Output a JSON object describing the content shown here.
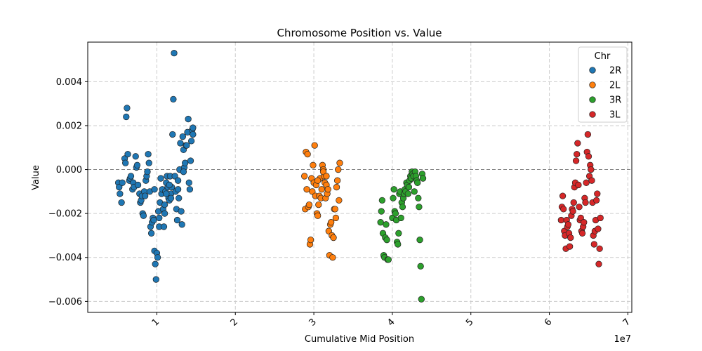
{
  "chart_data": {
    "type": "scatter",
    "title": "Chromosome Position vs. Value",
    "xlabel": "Cumulative Mid Position",
    "ylabel": "Value",
    "x_offset_label": "1e7",
    "xlim": [
      0.12,
      7.05
    ],
    "ylim": [
      -0.0065,
      0.0058
    ],
    "xticks": [
      1,
      2,
      3,
      4,
      5,
      6,
      7
    ],
    "xtick_labels": [
      "1",
      "2",
      "3",
      "4",
      "5",
      "6",
      "7"
    ],
    "yticks": [
      -0.006,
      -0.004,
      -0.002,
      0.0,
      0.002,
      0.004
    ],
    "ytick_labels": [
      "−0.006",
      "−0.004",
      "−0.002",
      "0.000",
      "0.002",
      "0.004"
    ],
    "grid": true,
    "reference_line_y": 0.0,
    "legend": {
      "title": "Chr",
      "position": "top-right",
      "entries": [
        "2R",
        "2L",
        "3R",
        "3L"
      ]
    },
    "series": [
      {
        "name": "2R",
        "color": "#1f77b4",
        "points": [
          [
            0.51,
            -0.0006
          ],
          [
            0.52,
            -0.0008
          ],
          [
            0.53,
            -0.0011
          ],
          [
            0.55,
            -0.0015
          ],
          [
            0.56,
            -0.0006
          ],
          [
            0.59,
            0.0005
          ],
          [
            0.6,
            0.0003
          ],
          [
            0.61,
            0.0024
          ],
          [
            0.62,
            0.0028
          ],
          [
            0.63,
            0.0007
          ],
          [
            0.65,
            -0.0005
          ],
          [
            0.66,
            -0.0004
          ],
          [
            0.67,
            -0.0003
          ],
          [
            0.69,
            -0.0009
          ],
          [
            0.7,
            -0.0006
          ],
          [
            0.71,
            -0.0008
          ],
          [
            0.73,
            0.0006
          ],
          [
            0.74,
            0.0001
          ],
          [
            0.75,
            0.0002
          ],
          [
            0.76,
            -0.0007
          ],
          [
            0.78,
            -0.0011
          ],
          [
            0.79,
            -0.0015
          ],
          [
            0.8,
            -0.0014
          ],
          [
            0.81,
            -0.0012
          ],
          [
            0.82,
            -0.002
          ],
          [
            0.83,
            -0.0021
          ],
          [
            0.84,
            -0.001
          ],
          [
            0.85,
            -0.0012
          ],
          [
            0.86,
            -0.0005
          ],
          [
            0.87,
            -0.0003
          ],
          [
            0.88,
            -0.0001
          ],
          [
            0.89,
            0.0007
          ],
          [
            0.9,
            0.0003
          ],
          [
            0.91,
            -0.001
          ],
          [
            0.92,
            -0.0026
          ],
          [
            0.93,
            -0.0029
          ],
          [
            0.94,
            -0.0024
          ],
          [
            0.95,
            -0.0022
          ],
          [
            0.96,
            -0.0023
          ],
          [
            0.97,
            -0.0037
          ],
          [
            0.98,
            -0.0043
          ],
          [
            0.99,
            -0.005
          ],
          [
            1.0,
            -0.0038
          ],
          [
            1.01,
            -0.004
          ],
          [
            1.02,
            -0.0019
          ],
          [
            1.03,
            -0.0026
          ],
          [
            1.04,
            -0.0015
          ],
          [
            1.05,
            -0.0004
          ],
          [
            1.06,
            -0.0011
          ],
          [
            1.07,
            -0.0009
          ],
          [
            1.08,
            -0.0018
          ],
          [
            1.09,
            -0.0026
          ],
          [
            1.1,
            -0.0016
          ],
          [
            1.11,
            -0.001
          ],
          [
            1.12,
            -0.0006
          ],
          [
            1.13,
            -0.0003
          ],
          [
            1.14,
            -0.0008
          ],
          [
            1.15,
            -0.0013
          ],
          [
            1.16,
            -0.0014
          ],
          [
            1.17,
            -0.0003
          ],
          [
            1.18,
            -0.0011
          ],
          [
            1.19,
            -0.0008
          ],
          [
            1.2,
            0.0016
          ],
          [
            1.21,
            0.0032
          ],
          [
            1.22,
            0.0053
          ],
          [
            1.23,
            -0.0003
          ],
          [
            1.24,
            -0.001
          ],
          [
            1.25,
            -0.0018
          ],
          [
            1.26,
            -0.0023
          ],
          [
            1.27,
            -0.0009
          ],
          [
            1.28,
            -0.0013
          ],
          [
            1.29,
            0.0
          ],
          [
            1.3,
            0.0012
          ],
          [
            1.31,
            -0.0019
          ],
          [
            1.32,
            -0.0025
          ],
          [
            1.33,
            0.0015
          ],
          [
            1.34,
            0.0009
          ],
          [
            1.35,
            0.0001
          ],
          [
            1.36,
            0.0003
          ],
          [
            1.37,
            0.0011
          ],
          [
            1.38,
            0.0011
          ],
          [
            1.39,
            0.0017
          ],
          [
            1.4,
            0.0023
          ],
          [
            1.41,
            -0.0006
          ],
          [
            1.42,
            -0.0009
          ],
          [
            1.43,
            0.0004
          ],
          [
            1.44,
            0.0013
          ],
          [
            1.45,
            0.0018
          ],
          [
            1.46,
            0.0016
          ],
          [
            1.46,
            0.0019
          ],
          [
            1.18,
            -0.0013
          ],
          [
            1.1,
            -0.002
          ],
          [
            1.03,
            -0.0022
          ],
          [
            0.97,
            -0.0009
          ],
          [
            1.12,
            -0.0011
          ],
          [
            1.27,
            -0.0005
          ],
          [
            1.34,
            -0.0001
          ],
          [
            1.16,
            -0.0007
          ]
        ]
      },
      {
        "name": "2L",
        "color": "#ff7f0e",
        "points": [
          [
            2.88,
            -0.0003
          ],
          [
            2.89,
            -0.0018
          ],
          [
            2.9,
            0.0008
          ],
          [
            2.91,
            -0.0009
          ],
          [
            2.92,
            0.0007
          ],
          [
            2.93,
            -0.0017
          ],
          [
            2.94,
            -0.0016
          ],
          [
            2.95,
            -0.0034
          ],
          [
            2.96,
            -0.0032
          ],
          [
            2.97,
            -0.0004
          ],
          [
            2.98,
            -0.001
          ],
          [
            2.99,
            0.0002
          ],
          [
            3.0,
            -0.0006
          ],
          [
            3.01,
            0.0011
          ],
          [
            3.02,
            -0.0012
          ],
          [
            3.03,
            -0.0007
          ],
          [
            3.04,
            -0.002
          ],
          [
            3.05,
            -0.0021
          ],
          [
            3.06,
            -0.0016
          ],
          [
            3.07,
            -0.0012
          ],
          [
            3.08,
            -0.0004
          ],
          [
            3.09,
            -0.0013
          ],
          [
            3.1,
            -0.0009
          ],
          [
            3.11,
            0.0002
          ],
          [
            3.12,
            0.0
          ],
          [
            3.13,
            -0.0003
          ],
          [
            3.14,
            -0.0006
          ],
          [
            3.15,
            -0.0013
          ],
          [
            3.16,
            -0.0007
          ],
          [
            3.17,
            -0.0011
          ],
          [
            3.18,
            -0.0009
          ],
          [
            3.19,
            -0.0028
          ],
          [
            3.2,
            -0.0039
          ],
          [
            3.21,
            -0.0025
          ],
          [
            3.22,
            -0.0024
          ],
          [
            3.23,
            -0.003
          ],
          [
            3.24,
            -0.004
          ],
          [
            3.25,
            -0.0031
          ],
          [
            3.26,
            -0.0018
          ],
          [
            3.27,
            -0.0018
          ],
          [
            3.28,
            -0.0022
          ],
          [
            3.29,
            -0.0008
          ],
          [
            3.3,
            -0.0005
          ],
          [
            3.31,
            0.0
          ],
          [
            3.32,
            -0.0014
          ],
          [
            3.33,
            0.0003
          ],
          [
            3.05,
            -0.0005
          ],
          [
            3.12,
            -0.0001
          ],
          [
            3.16,
            -0.0003
          ]
        ]
      },
      {
        "name": "3R",
        "color": "#2ca02c",
        "points": [
          [
            3.85,
            -0.0024
          ],
          [
            3.86,
            -0.0019
          ],
          [
            3.87,
            -0.0014
          ],
          [
            3.88,
            -0.0029
          ],
          [
            3.89,
            -0.0039
          ],
          [
            3.9,
            -0.004
          ],
          [
            3.91,
            -0.0031
          ],
          [
            3.92,
            -0.0025
          ],
          [
            3.93,
            -0.0032
          ],
          [
            3.94,
            -0.0041
          ],
          [
            3.95,
            -0.0041
          ],
          [
            4.0,
            -0.0022
          ],
          [
            4.01,
            -0.0013
          ],
          [
            4.02,
            -0.0009
          ],
          [
            4.03,
            -0.0019
          ],
          [
            4.04,
            -0.002
          ],
          [
            4.05,
            -0.0023
          ],
          [
            4.06,
            -0.0033
          ],
          [
            4.07,
            -0.0034
          ],
          [
            4.08,
            -0.0029
          ],
          [
            4.09,
            -0.0011
          ],
          [
            4.1,
            -0.001
          ],
          [
            4.11,
            -0.0022
          ],
          [
            4.12,
            -0.0015
          ],
          [
            4.13,
            -0.0017
          ],
          [
            4.14,
            -0.0013
          ],
          [
            4.15,
            -0.0011
          ],
          [
            4.16,
            -0.0009
          ],
          [
            4.17,
            -0.001
          ],
          [
            4.18,
            -0.0006
          ],
          [
            4.19,
            -0.0007
          ],
          [
            4.2,
            -0.0011
          ],
          [
            4.21,
            -0.0008
          ],
          [
            4.22,
            -0.0005
          ],
          [
            4.23,
            -0.0003
          ],
          [
            4.24,
            -0.0004
          ],
          [
            4.25,
            -0.0001
          ],
          [
            4.26,
            -0.0002
          ],
          [
            4.27,
            -0.0003
          ],
          [
            4.28,
            -0.001
          ],
          [
            4.29,
            -0.0001
          ],
          [
            4.3,
            -0.0003
          ],
          [
            4.31,
            -0.0005
          ],
          [
            4.32,
            -0.0006
          ],
          [
            4.33,
            -0.0013
          ],
          [
            4.34,
            -0.0017
          ],
          [
            4.35,
            -0.0032
          ],
          [
            4.36,
            -0.0044
          ],
          [
            4.37,
            -0.0059
          ],
          [
            4.38,
            -0.0002
          ],
          [
            4.39,
            -0.0004
          ]
        ]
      },
      {
        "name": "3L",
        "color": "#d62728",
        "points": [
          [
            6.15,
            -0.0023
          ],
          [
            6.16,
            -0.0017
          ],
          [
            6.17,
            -0.0012
          ],
          [
            6.18,
            -0.0018
          ],
          [
            6.19,
            -0.0028
          ],
          [
            6.2,
            -0.003
          ],
          [
            6.21,
            -0.0036
          ],
          [
            6.22,
            -0.0023
          ],
          [
            6.23,
            -0.0026
          ],
          [
            6.24,
            -0.0025
          ],
          [
            6.25,
            -0.0029
          ],
          [
            6.26,
            -0.0035
          ],
          [
            6.27,
            -0.0031
          ],
          [
            6.28,
            -0.0021
          ],
          [
            6.29,
            -0.0018
          ],
          [
            6.3,
            -0.0019
          ],
          [
            6.31,
            -0.0015
          ],
          [
            6.32,
            -0.0008
          ],
          [
            6.33,
            -0.0006
          ],
          [
            6.34,
            0.0004
          ],
          [
            6.35,
            0.0007
          ],
          [
            6.36,
            0.0012
          ],
          [
            6.37,
            -0.0007
          ],
          [
            6.38,
            -0.0017
          ],
          [
            6.39,
            -0.0023
          ],
          [
            6.4,
            -0.0022
          ],
          [
            6.41,
            -0.0028
          ],
          [
            6.42,
            -0.0029
          ],
          [
            6.43,
            -0.0026
          ],
          [
            6.44,
            -0.0024
          ],
          [
            6.45,
            -0.0013
          ],
          [
            6.46,
            -0.0015
          ],
          [
            6.47,
            -0.0006
          ],
          [
            6.48,
            0.0008
          ],
          [
            6.49,
            0.0016
          ],
          [
            6.5,
            0.0006
          ],
          [
            6.51,
            -0.0003
          ],
          [
            6.52,
            0.0002
          ],
          [
            6.53,
            0.0
          ],
          [
            6.54,
            -0.0005
          ],
          [
            6.55,
            -0.0015
          ],
          [
            6.56,
            -0.003
          ],
          [
            6.57,
            -0.0034
          ],
          [
            6.58,
            -0.0028
          ],
          [
            6.59,
            -0.0023
          ],
          [
            6.6,
            -0.0014
          ],
          [
            6.61,
            -0.0011
          ],
          [
            6.62,
            -0.0027
          ],
          [
            6.63,
            -0.0043
          ],
          [
            6.64,
            -0.0036
          ],
          [
            6.65,
            -0.0022
          ]
        ]
      }
    ]
  }
}
